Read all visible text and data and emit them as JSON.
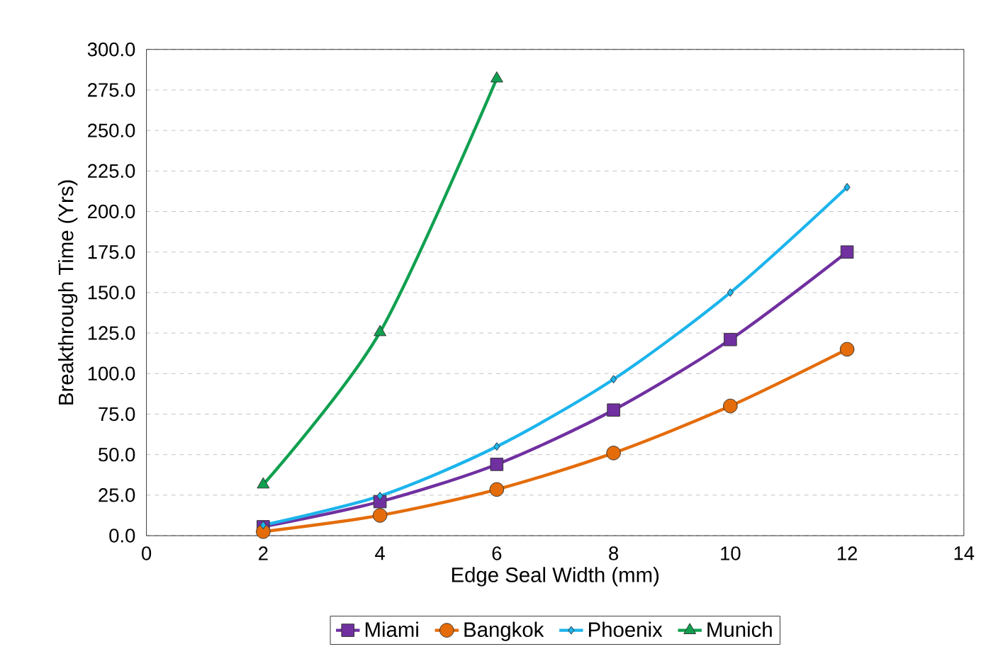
{
  "chart_data": {
    "type": "line",
    "xlabel": "Edge Seal Width (mm)",
    "ylabel": "Breakthrough Time (Yrs)",
    "xlim": [
      0,
      14
    ],
    "xticks": [
      0,
      2,
      4,
      6,
      8,
      10,
      12,
      14
    ],
    "ylim": [
      0,
      300
    ],
    "yticks": [
      {
        "value": 0,
        "label": "0.0"
      },
      {
        "value": 25,
        "label": "25.0"
      },
      {
        "value": 50,
        "label": "50.0"
      },
      {
        "value": 75,
        "label": "75.0"
      },
      {
        "value": 100,
        "label": "100.0"
      },
      {
        "value": 125,
        "label": "125.0"
      },
      {
        "value": 150,
        "label": "150.0"
      },
      {
        "value": 175,
        "label": "175.0"
      },
      {
        "value": 200,
        "label": "200.0"
      },
      {
        "value": 225,
        "label": "225.0"
      },
      {
        "value": 250,
        "label": "250.0"
      },
      {
        "value": 275,
        "label": "275.0"
      },
      {
        "value": 300,
        "label": "300.0"
      }
    ],
    "grid": "y",
    "legend": "bottom",
    "line_style": "solid",
    "series": [
      {
        "name": "Miami",
        "color": "#7030a0",
        "marker": "square",
        "x": [
          2,
          4,
          6,
          8,
          10,
          12
        ],
        "values": [
          5.5,
          21,
          44,
          77.5,
          121,
          175
        ]
      },
      {
        "name": "Bangkok",
        "color": "#e46c0a",
        "marker": "circle",
        "x": [
          2,
          4,
          6,
          8,
          10,
          12
        ],
        "values": [
          2.5,
          12.5,
          28.5,
          51,
          80,
          115
        ]
      },
      {
        "name": "Phoenix",
        "color": "#1cb4ec",
        "marker": "diamond",
        "x": [
          2,
          4,
          6,
          8,
          10,
          12
        ],
        "values": [
          6.5,
          24.5,
          55,
          96.5,
          150,
          215
        ]
      },
      {
        "name": "Munich",
        "color": "#10a050",
        "marker": "triangle",
        "x": [
          2,
          4,
          6
        ],
        "values": [
          31.5,
          125.5,
          282
        ]
      }
    ]
  }
}
